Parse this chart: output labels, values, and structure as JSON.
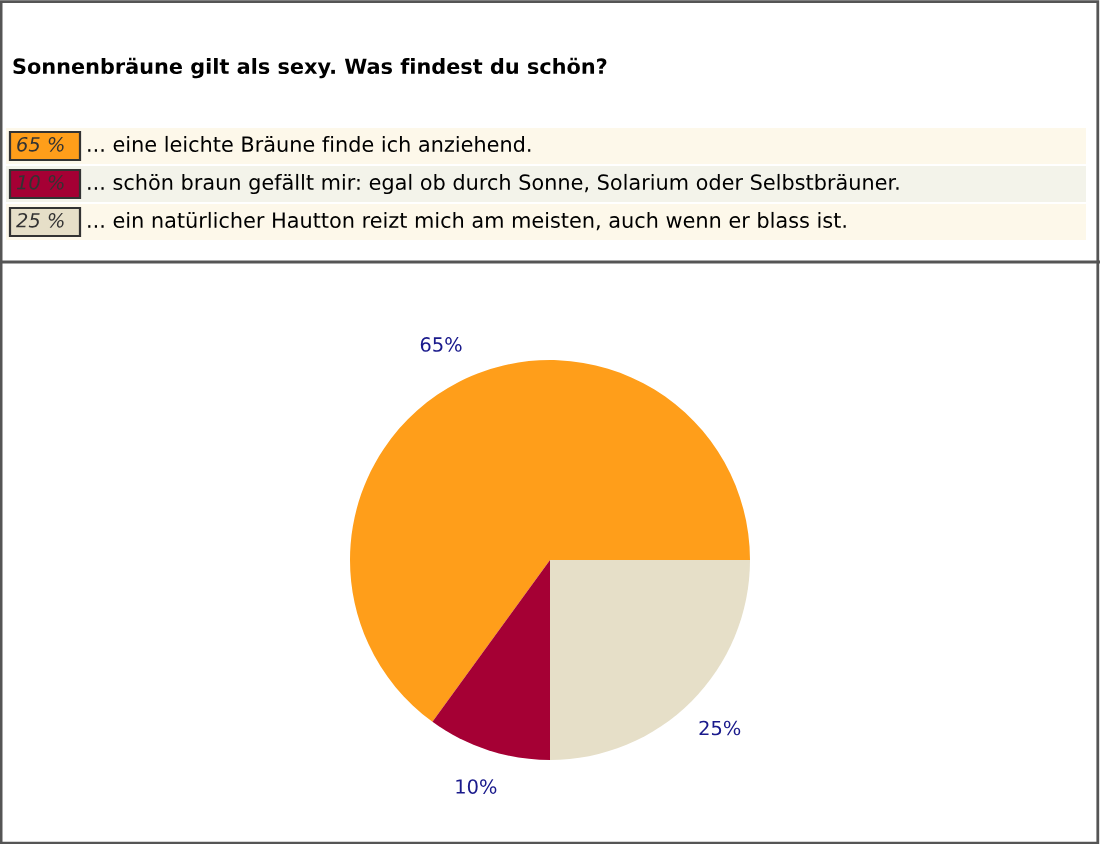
{
  "chart_data": {
    "type": "pie",
    "title": "Sonnenbräune gilt als sexy. Was findest du schön?",
    "categories": [
      "... eine leichte Bräune finde ich anziehend.",
      "... schön braun gefällt mir: egal ob durch Sonne, Solarium oder Selbstbräuner.",
      "... ein natürlicher Hautton reizt mich am meisten, auch wenn er blass ist."
    ],
    "values": [
      65,
      10,
      25
    ],
    "colors": [
      "#ff9e1a",
      "#a50034",
      "#e6dfc8"
    ],
    "value_labels": [
      "65%",
      "10%",
      "25%"
    ],
    "annotations": [
      "65 %",
      "10 %",
      "25 %"
    ],
    "legend": "top"
  }
}
